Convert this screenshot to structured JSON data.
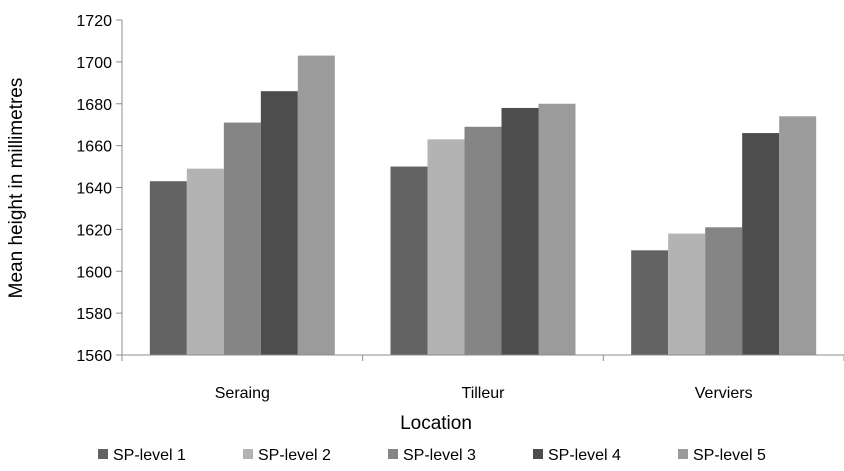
{
  "chart_data": {
    "type": "bar",
    "title": "",
    "xlabel": "Location",
    "ylabel": "Mean height in millimetres",
    "categories": [
      "Seraing",
      "Tilleur",
      "Verviers"
    ],
    "ylim": [
      1560,
      1720
    ],
    "yticks": [
      1560,
      1580,
      1600,
      1620,
      1640,
      1660,
      1680,
      1700,
      1720
    ],
    "grid": false,
    "legend_position": "bottom",
    "series": [
      {
        "name": "SP-level 1",
        "color": "#636363",
        "values": [
          1643,
          1650,
          1610
        ]
      },
      {
        "name": "SP-level 2",
        "color": "#b3b3b3",
        "values": [
          1649,
          1663,
          1618
        ]
      },
      {
        "name": "SP-level 3",
        "color": "#858585",
        "values": [
          1671,
          1669,
          1621
        ]
      },
      {
        "name": "SP-level 4",
        "color": "#4d4d4d",
        "values": [
          1686,
          1678,
          1666
        ]
      },
      {
        "name": "SP-level 5",
        "color": "#9b9b9b",
        "values": [
          1703,
          1680,
          1674
        ]
      }
    ]
  }
}
